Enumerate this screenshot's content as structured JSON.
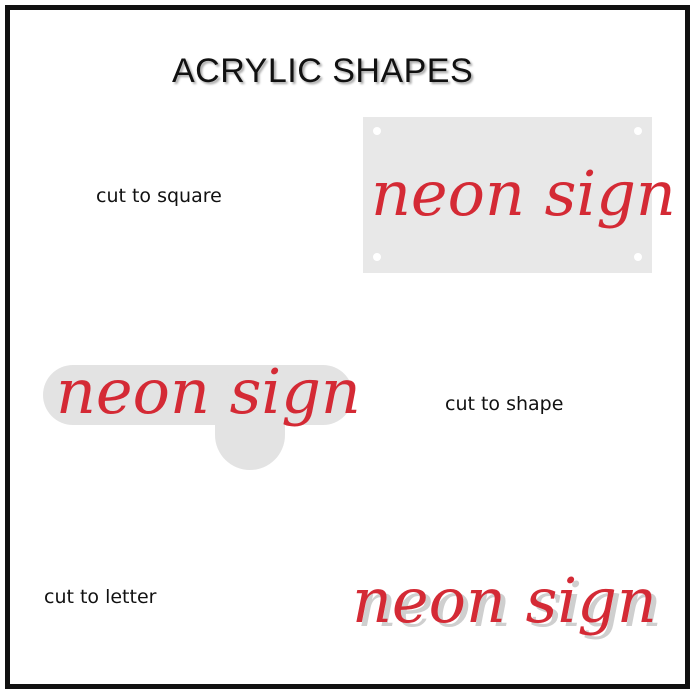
{
  "title": "ACRYLIC SHAPES",
  "sections": {
    "square": {
      "label": "cut to square",
      "sign": "neon sign"
    },
    "shape": {
      "label": "cut to shape",
      "sign": "neon sign"
    },
    "letter": {
      "label": "cut to letter",
      "sign": "neon sign"
    }
  },
  "colors": {
    "sign_red": "#d42a35",
    "acrylic_gray": "#e8e8e8",
    "border": "#111111"
  }
}
